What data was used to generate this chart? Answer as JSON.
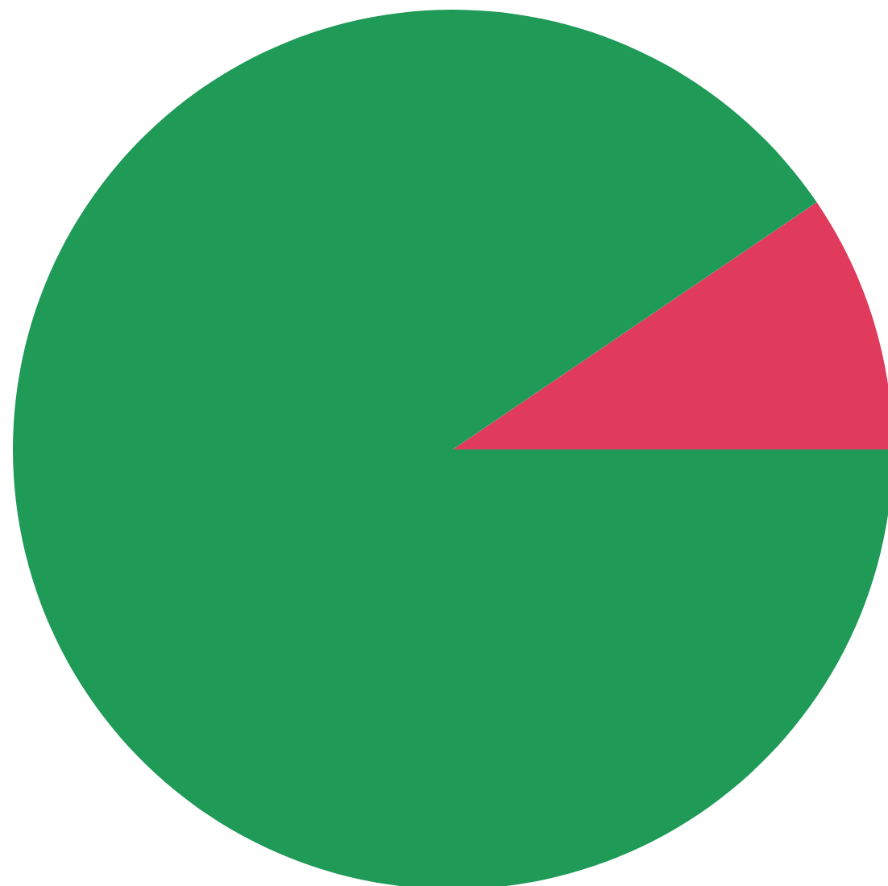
{
  "chart_data": {
    "type": "pie",
    "categories": [
      null,
      null
    ],
    "values": [
      9.5,
      90.5
    ],
    "colors": [
      "#e03a5c",
      "#1f9a57"
    ]
  }
}
